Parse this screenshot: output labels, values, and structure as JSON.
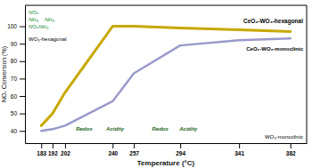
{
  "chart_data": {
    "type": "line",
    "xlabel": "Temperature (°C)",
    "ylabel": "NOₓ Conversion (%)",
    "xlim": [
      170,
      395
    ],
    "ylim": [
      33,
      112
    ],
    "xticks": [
      183,
      192,
      202,
      240,
      257,
      294,
      341,
      382
    ],
    "yticks": [
      40,
      50,
      60,
      70,
      80,
      90,
      100
    ],
    "grid": false,
    "x": [
      183,
      192,
      202,
      240,
      257,
      294,
      341,
      382
    ],
    "series": [
      {
        "name": "CeO₂-WO₃-monoclinic",
        "color": "#9999cc",
        "values": [
          40,
          41,
          43,
          57,
          73,
          89,
          92,
          93
        ]
      },
      {
        "name": "CeO₂-WO₃-hexagonal",
        "color": "#c8a800",
        "values": [
          43,
          50,
          62,
          100,
          100,
          99,
          98,
          97
        ]
      }
    ],
    "annotations": [
      "NOₓ",
      "NH₃",
      "NH₃",
      "NOₓNH₃",
      "Redox",
      "Acidity",
      "Redox",
      "Acidity",
      "WO₃-hexagonal",
      "WO₃-monoclinic"
    ]
  }
}
